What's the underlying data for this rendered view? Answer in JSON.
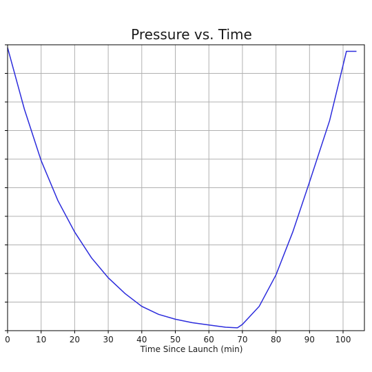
{
  "chart_data": {
    "type": "line",
    "title": "Pressure vs. Time",
    "xlabel": "Time Since Launch (min)",
    "ylabel": "",
    "xlim": [
      0,
      104
    ],
    "ylim": [
      0,
      10
    ],
    "x_ticks": [
      0,
      10,
      20,
      30,
      40,
      50,
      60,
      70,
      80,
      90,
      100
    ],
    "y_ticks": [
      0,
      1,
      2,
      3,
      4,
      5,
      6,
      7,
      8,
      9,
      10
    ],
    "grid": true,
    "series": [
      {
        "color": "#2b2bdc",
        "x": [
          0,
          5,
          10,
          15,
          20,
          25,
          30,
          35,
          40,
          45,
          50,
          55,
          60,
          65,
          68.5,
          70,
          75,
          80,
          85,
          90,
          96,
          101,
          104
        ],
        "y": [
          9.9,
          7.75,
          5.95,
          4.55,
          3.45,
          2.55,
          1.85,
          1.3,
          0.85,
          0.57,
          0.4,
          0.28,
          0.2,
          0.12,
          0.1,
          0.22,
          0.85,
          1.95,
          3.45,
          5.2,
          7.35,
          9.77,
          9.77
        ]
      }
    ]
  }
}
